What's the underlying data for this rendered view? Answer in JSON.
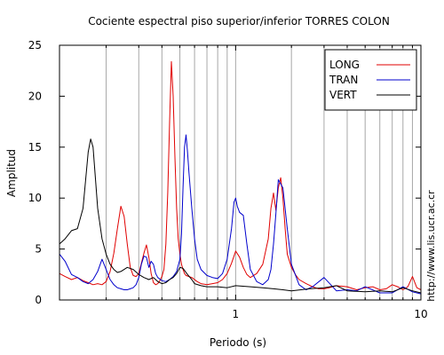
{
  "chart_data": {
    "type": "line",
    "title": "Cociente espectral piso superior/inferior  TORRES COLON",
    "xlabel": "Periodo (s)",
    "ylabel": "Amplitud",
    "x_scale": "log",
    "xlim": [
      0.112,
      10
    ],
    "ylim": [
      0,
      25
    ],
    "x_major_ticks": [
      1,
      10
    ],
    "x_tick_labels": [
      "1",
      "10"
    ],
    "y_ticks": [
      0,
      5,
      10,
      15,
      20,
      25
    ],
    "y_tick_labels": [
      "0",
      "5",
      "10",
      "15",
      "20",
      "25"
    ],
    "grid": "vertical",
    "legend_position": "top-right",
    "watermark": "http://www.lis.ucr.ac.cr",
    "series": [
      {
        "name": "LONG",
        "color": "#e00000",
        "x": [
          0.112,
          0.12,
          0.13,
          0.14,
          0.15,
          0.16,
          0.17,
          0.18,
          0.19,
          0.2,
          0.21,
          0.22,
          0.23,
          0.24,
          0.25,
          0.26,
          0.27,
          0.28,
          0.29,
          0.3,
          0.31,
          0.32,
          0.33,
          0.34,
          0.35,
          0.36,
          0.37,
          0.38,
          0.39,
          0.4,
          0.41,
          0.42,
          0.43,
          0.44,
          0.45,
          0.46,
          0.47,
          0.48,
          0.49,
          0.5,
          0.51,
          0.52,
          0.53,
          0.54,
          0.56,
          0.58,
          0.6,
          0.62,
          0.65,
          0.7,
          0.75,
          0.8,
          0.85,
          0.9,
          0.95,
          0.98,
          1.0,
          1.05,
          1.1,
          1.15,
          1.2,
          1.3,
          1.4,
          1.5,
          1.55,
          1.6,
          1.65,
          1.7,
          1.75,
          1.8,
          1.85,
          1.9,
          2.0,
          2.1,
          2.2,
          2.4,
          2.6,
          2.8,
          3.0,
          3.2,
          3.5,
          4.0,
          4.5,
          5.0,
          5.5,
          6.0,
          6.5,
          7.0,
          7.5,
          8.0,
          8.5,
          9.0,
          9.5,
          10.0
        ],
        "y": [
          2.6,
          2.3,
          2.0,
          2.2,
          1.9,
          1.7,
          1.5,
          1.6,
          1.5,
          1.8,
          2.8,
          4.6,
          7.0,
          9.2,
          8.2,
          5.5,
          3.2,
          2.4,
          2.3,
          2.6,
          3.6,
          4.6,
          5.4,
          4.2,
          2.6,
          1.7,
          1.5,
          1.6,
          1.9,
          2.3,
          3.0,
          5.5,
          10.5,
          17.5,
          23.4,
          20.0,
          14.0,
          9.0,
          6.0,
          4.5,
          3.5,
          3.0,
          2.6,
          2.4,
          2.3,
          2.2,
          2.0,
          1.8,
          1.6,
          1.5,
          1.6,
          1.7,
          2.0,
          2.6,
          3.6,
          4.3,
          4.8,
          4.2,
          3.2,
          2.5,
          2.2,
          2.6,
          3.5,
          6.0,
          9.0,
          10.5,
          8.8,
          11.0,
          12.0,
          10.0,
          7.0,
          4.5,
          3.2,
          2.5,
          2.0,
          1.6,
          1.3,
          1.1,
          1.1,
          1.2,
          1.4,
          1.3,
          1.0,
          1.2,
          1.3,
          1.0,
          1.1,
          1.5,
          1.3,
          1.0,
          1.3,
          2.3,
          1.2,
          1.0
        ]
      },
      {
        "name": "TRAN",
        "color": "#0000cc",
        "x": [
          0.112,
          0.12,
          0.13,
          0.14,
          0.15,
          0.16,
          0.17,
          0.18,
          0.19,
          0.2,
          0.21,
          0.22,
          0.23,
          0.24,
          0.25,
          0.26,
          0.27,
          0.28,
          0.29,
          0.3,
          0.31,
          0.32,
          0.33,
          0.34,
          0.35,
          0.36,
          0.37,
          0.38,
          0.4,
          0.42,
          0.44,
          0.46,
          0.48,
          0.5,
          0.51,
          0.52,
          0.53,
          0.54,
          0.55,
          0.56,
          0.58,
          0.6,
          0.62,
          0.65,
          0.7,
          0.75,
          0.8,
          0.85,
          0.9,
          0.95,
          0.98,
          1.0,
          1.02,
          1.05,
          1.1,
          1.15,
          1.2,
          1.3,
          1.4,
          1.5,
          1.55,
          1.6,
          1.65,
          1.7,
          1.75,
          1.8,
          1.9,
          2.0,
          2.2,
          2.4,
          2.6,
          3.0,
          3.5,
          4.0,
          4.5,
          5.0,
          6.0,
          7.0,
          8.0,
          9.0,
          10.0
        ],
        "y": [
          4.5,
          3.8,
          2.5,
          2.2,
          1.8,
          1.6,
          2.0,
          2.8,
          4.0,
          3.0,
          2.0,
          1.5,
          1.2,
          1.1,
          1.0,
          1.0,
          1.1,
          1.2,
          1.5,
          2.2,
          3.5,
          4.3,
          4.2,
          3.2,
          3.8,
          3.5,
          2.6,
          2.2,
          1.9,
          1.8,
          2.0,
          2.3,
          2.8,
          4.0,
          6.5,
          11.0,
          15.0,
          16.2,
          14.5,
          12.5,
          9.0,
          6.0,
          4.0,
          3.0,
          2.4,
          2.2,
          2.1,
          2.6,
          4.0,
          7.0,
          9.6,
          10.0,
          9.2,
          8.6,
          8.3,
          5.5,
          3.0,
          1.8,
          1.5,
          2.0,
          3.0,
          5.5,
          8.5,
          11.8,
          11.4,
          11.0,
          7.0,
          3.5,
          1.5,
          1.0,
          1.3,
          2.2,
          0.9,
          1.0,
          0.9,
          1.3,
          0.7,
          0.7,
          1.3,
          0.8,
          0.6
        ]
      },
      {
        "name": "VERT",
        "color": "#000000",
        "x": [
          0.112,
          0.12,
          0.13,
          0.14,
          0.15,
          0.16,
          0.165,
          0.17,
          0.175,
          0.18,
          0.19,
          0.2,
          0.21,
          0.22,
          0.23,
          0.24,
          0.26,
          0.28,
          0.3,
          0.32,
          0.34,
          0.36,
          0.38,
          0.4,
          0.42,
          0.44,
          0.46,
          0.48,
          0.5,
          0.52,
          0.55,
          0.58,
          0.6,
          0.65,
          0.7,
          0.8,
          0.9,
          1.0,
          1.2,
          1.4,
          1.6,
          1.8,
          2.0,
          2.5,
          3.0,
          3.5,
          4.0,
          5.0,
          6.0,
          7.0,
          8.0,
          9.0,
          10.0
        ],
        "y": [
          5.5,
          6.0,
          6.8,
          7.0,
          9.0,
          14.5,
          15.8,
          15.0,
          12.0,
          9.0,
          6.0,
          4.5,
          3.5,
          3.0,
          2.7,
          2.8,
          3.2,
          3.0,
          2.5,
          2.2,
          2.0,
          2.2,
          1.8,
          1.6,
          1.7,
          2.0,
          2.2,
          2.6,
          3.2,
          3.1,
          2.5,
          2.0,
          1.6,
          1.4,
          1.3,
          1.3,
          1.2,
          1.4,
          1.3,
          1.2,
          1.1,
          1.0,
          0.9,
          1.1,
          1.2,
          1.4,
          0.9,
          0.8,
          0.9,
          0.8,
          1.2,
          0.9,
          0.7
        ]
      }
    ]
  }
}
